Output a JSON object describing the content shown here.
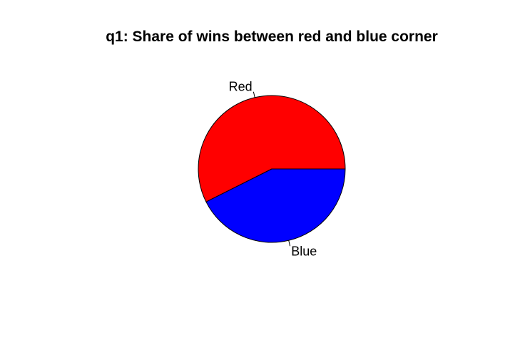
{
  "chart_data": {
    "type": "pie",
    "title": "q1: Share of wins between red and blue corner",
    "slices": [
      {
        "label": "Red",
        "value": 0.574,
        "color": "#ff0000"
      },
      {
        "label": "Blue",
        "value": 0.426,
        "color": "#0000ff"
      }
    ],
    "start_angle_degrees": 0,
    "direction": "counterclockwise"
  }
}
